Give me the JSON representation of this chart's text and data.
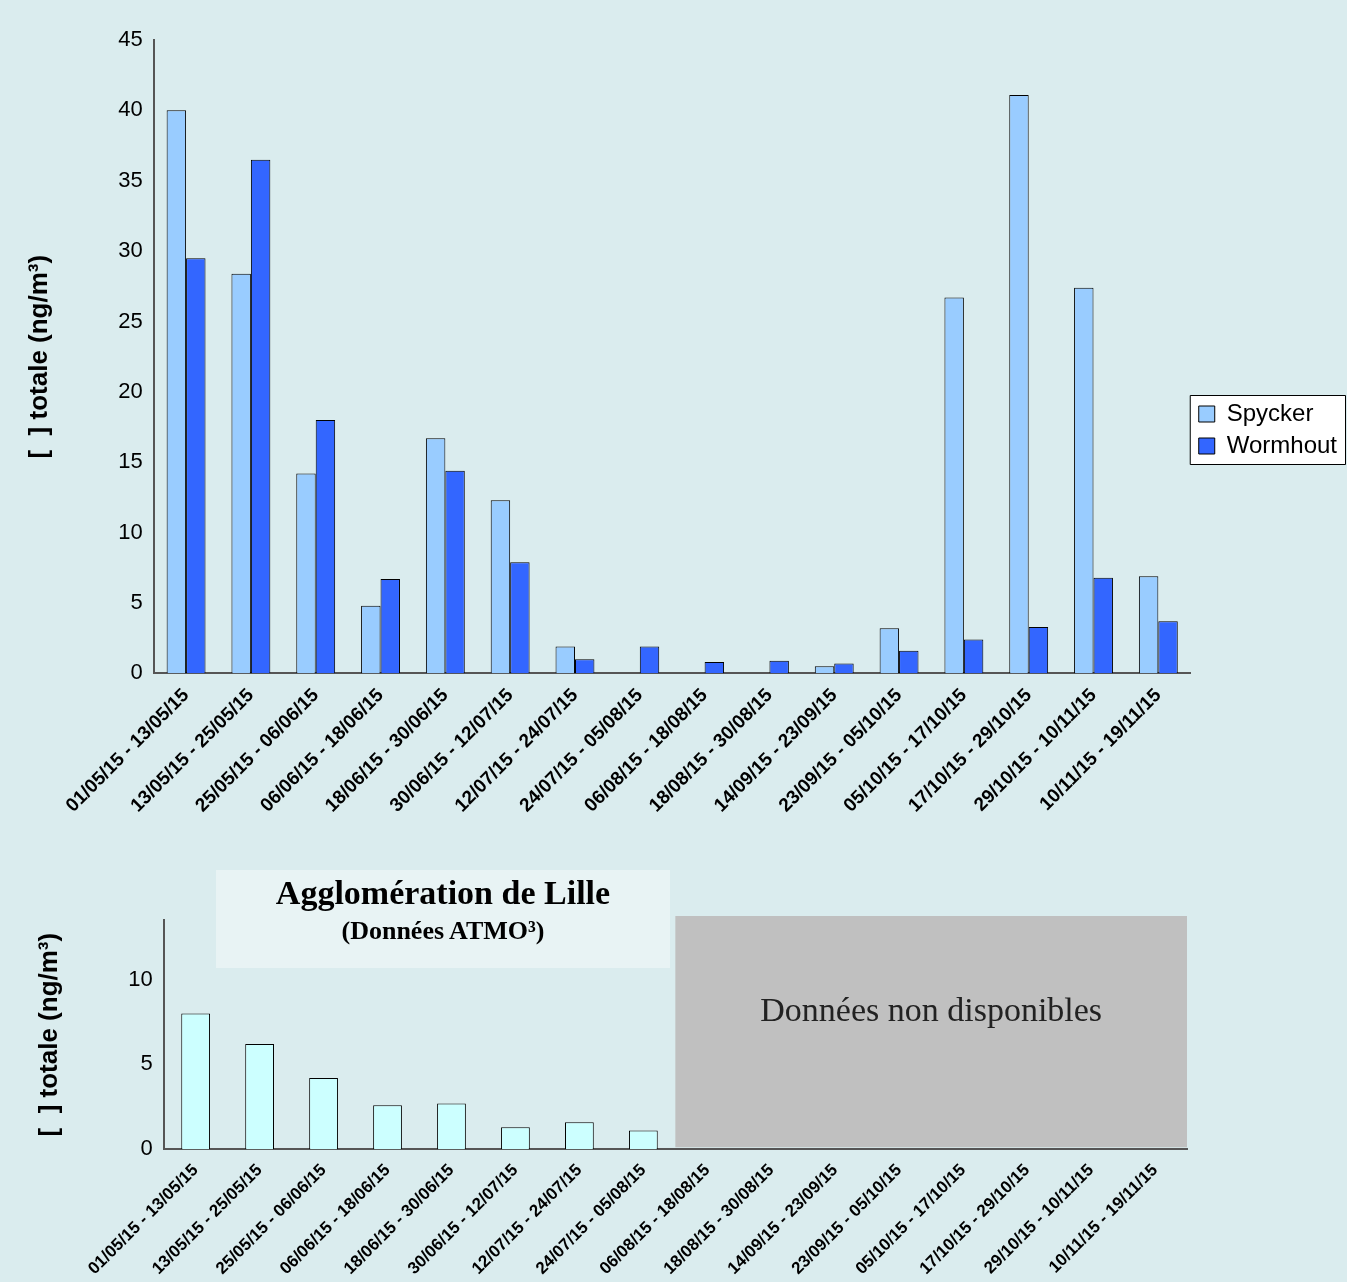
{
  "chart_data": [
    {
      "type": "bar",
      "ylabel": "[  ] totale (ng/m³)",
      "categories": [
        "01/05/15 - 13/05/15",
        "13/05/15 - 25/05/15",
        "25/05/15 - 06/06/15",
        "06/06/15 - 18/06/15",
        "18/06/15 - 30/06/15",
        "30/06/15 - 12/07/15",
        "12/07/15 - 24/07/15",
        "24/07/15 - 05/08/15",
        "06/08/15 - 18/08/15",
        "18/08/15 - 30/08/15",
        "14/09/15 - 23/09/15",
        "23/09/15 - 05/10/15",
        "05/10/15 - 17/10/15",
        "17/10/15 - 29/10/15",
        "29/10/15 - 10/11/15",
        "10/11/15 - 19/11/15"
      ],
      "series": [
        {
          "name": "Spycker",
          "color": "#99ccff",
          "values": [
            40,
            28.4,
            14.2,
            4.8,
            16.7,
            12.3,
            1.9,
            null,
            null,
            null,
            0.5,
            3.2,
            26.7,
            41.1,
            27.4,
            6.9
          ]
        },
        {
          "name": "Wormhout",
          "color": "#3366ff",
          "values": [
            29.5,
            36.5,
            18,
            6.7,
            14.4,
            7.9,
            1.0,
            1.9,
            0.8,
            0.9,
            0.7,
            1.6,
            2.4,
            3.3,
            6.8,
            3.7
          ]
        }
      ],
      "ylim": [
        0,
        45
      ],
      "yticks": [
        0,
        5,
        10,
        15,
        20,
        25,
        30,
        35,
        40,
        45
      ],
      "grid": false,
      "legend": "right"
    },
    {
      "type": "bar",
      "title": "Agglomération de Lille",
      "subtitle": "(Données ATMO³)",
      "ylabel": "[  ] totale (ng/m³)",
      "categories": [
        "01/05/15 - 13/05/15",
        "13/05/15 - 25/05/15",
        "25/05/15 - 06/06/15",
        "06/06/15 - 18/06/15",
        "18/06/15 - 30/06/15",
        "30/06/15 - 12/07/15",
        "12/07/15 - 24/07/15",
        "24/07/15 - 05/08/15",
        "06/08/15 - 18/08/15",
        "18/08/15 - 30/08/15",
        "14/09/15 - 23/09/15",
        "23/09/15 - 05/10/15",
        "05/10/15 - 17/10/15",
        "17/10/15 - 29/10/15",
        "29/10/15 - 10/11/15",
        "10/11/15 - 19/11/15"
      ],
      "values": [
        8.0,
        6.2,
        4.2,
        2.6,
        2.7,
        1.3,
        1.6,
        1.1,
        null,
        null,
        null,
        null,
        null,
        null,
        null,
        null
      ],
      "color": "#ccffff",
      "ylim": [
        0,
        13.5
      ],
      "yticks": [
        0,
        5,
        10
      ],
      "grid": false,
      "bands": [
        {
          "axis": "x",
          "from": "06/08/15 - 18/08/15",
          "to": "10/11/15 - 19/11/15",
          "label": "Données non disponibles",
          "color": "#c0c0c0"
        }
      ]
    }
  ]
}
